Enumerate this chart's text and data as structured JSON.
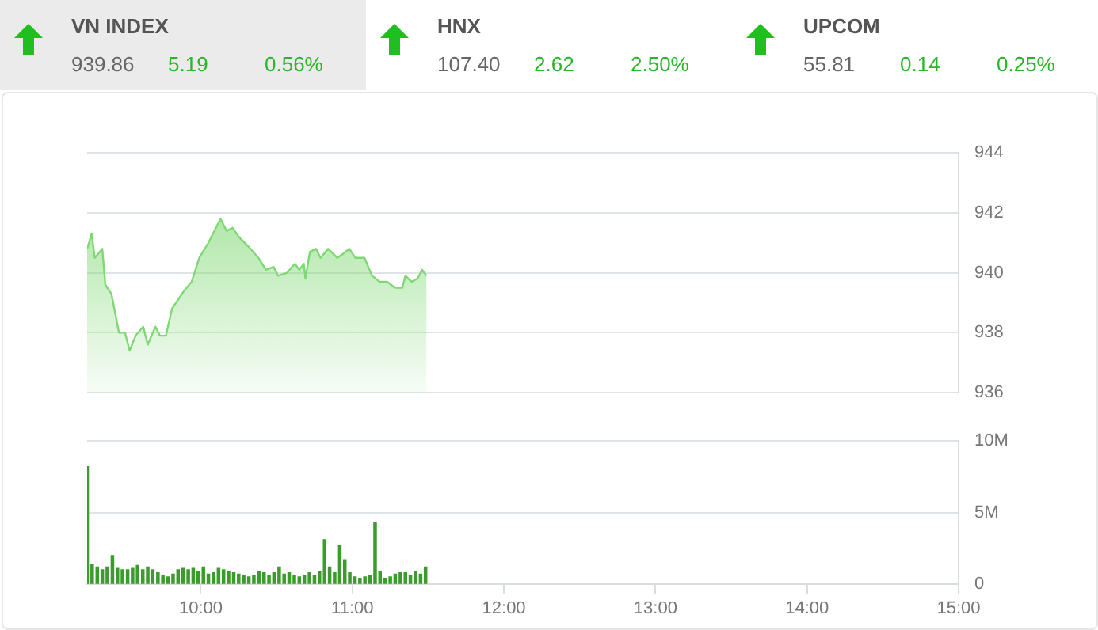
{
  "chart_data": [
    {
      "type": "other",
      "annotations": [
        "VN INDEX",
        "939.86",
        "5.19",
        "0.56%",
        "HNX",
        "107.40",
        "2.62",
        "2.50%",
        "UPCOM",
        "55.81",
        "0.14",
        "0.25%"
      ]
    },
    {
      "type": "area",
      "color": "#7fd873",
      "xlim": [
        9.25,
        15
      ],
      "ylim": [
        936,
        944
      ],
      "yticks": [
        936,
        938,
        940,
        942,
        944
      ],
      "grid": "y",
      "tick_labels": "y",
      "x": [
        9.25,
        9.28,
        9.3,
        9.35,
        9.37,
        9.41,
        9.46,
        9.5,
        9.53,
        9.57,
        9.62,
        9.65,
        9.7,
        9.73,
        9.77,
        9.81,
        9.89,
        9.94,
        9.99,
        10.05,
        10.1,
        10.13,
        10.17,
        10.21,
        10.25,
        10.31,
        10.38,
        10.43,
        10.48,
        10.51,
        10.57,
        10.62,
        10.65,
        10.68,
        10.69,
        10.72,
        10.76,
        10.79,
        10.84,
        10.9,
        10.93,
        10.98,
        11.02,
        11.08,
        11.13,
        11.18,
        11.23,
        11.28,
        11.33,
        11.35,
        11.39,
        11.43,
        11.46,
        11.49
      ],
      "values": [
        940.8,
        941.3,
        940.5,
        940.8,
        939.6,
        939.3,
        938.0,
        938.0,
        937.4,
        937.9,
        938.2,
        937.6,
        938.2,
        937.9,
        937.9,
        938.8,
        939.4,
        939.7,
        940.5,
        941.0,
        941.5,
        941.8,
        941.4,
        941.5,
        941.2,
        940.9,
        940.5,
        940.1,
        940.2,
        939.9,
        940.0,
        940.3,
        940.1,
        940.3,
        939.8,
        940.7,
        940.8,
        940.5,
        940.8,
        940.5,
        940.6,
        940.8,
        940.5,
        940.5,
        939.9,
        939.7,
        939.7,
        939.5,
        939.5,
        939.9,
        939.7,
        939.8,
        940.1,
        939.9
      ]
    },
    {
      "type": "bar",
      "color": "#3b9b2c",
      "xlim": [
        9.25,
        15
      ],
      "ylim": [
        0,
        10
      ],
      "yticks": [
        0,
        {
          "value": 5,
          "label": "5M"
        },
        {
          "value": 10,
          "label": "10M"
        }
      ],
      "grid": "y",
      "xticks": [
        {
          "value": 10,
          "label": "10:00"
        },
        {
          "value": 11,
          "label": "11:00"
        },
        {
          "value": 12,
          "label": "12:00"
        },
        {
          "value": 13,
          "label": "13:00"
        },
        {
          "value": 14,
          "label": "14:00"
        },
        {
          "value": 15,
          "label": "15:00"
        }
      ],
      "x": [
        9.25,
        9.283,
        9.317,
        9.35,
        9.383,
        9.417,
        9.45,
        9.483,
        9.517,
        9.55,
        9.583,
        9.617,
        9.65,
        9.683,
        9.717,
        9.75,
        9.783,
        9.817,
        9.85,
        9.883,
        9.917,
        9.95,
        9.983,
        10.017,
        10.05,
        10.083,
        10.117,
        10.15,
        10.183,
        10.217,
        10.25,
        10.283,
        10.317,
        10.35,
        10.383,
        10.417,
        10.45,
        10.483,
        10.517,
        10.55,
        10.583,
        10.617,
        10.65,
        10.683,
        10.717,
        10.75,
        10.783,
        10.817,
        10.85,
        10.883,
        10.917,
        10.95,
        10.983,
        11.017,
        11.05,
        11.083,
        11.117,
        11.15,
        11.183,
        11.217,
        11.25,
        11.283,
        11.317,
        11.35,
        11.383,
        11.417,
        11.45,
        11.483
      ],
      "values": [
        8.2,
        1.4,
        1.2,
        1.0,
        1.2,
        2.0,
        1.1,
        1.0,
        1.0,
        1.1,
        1.3,
        1.0,
        1.2,
        1.0,
        0.8,
        0.6,
        0.5,
        0.7,
        1.0,
        1.1,
        1.0,
        1.1,
        0.9,
        1.2,
        0.7,
        0.8,
        1.1,
        1.0,
        0.9,
        0.8,
        0.7,
        0.6,
        0.5,
        0.6,
        0.9,
        0.8,
        0.6,
        0.8,
        1.2,
        0.7,
        0.8,
        0.6,
        0.5,
        0.6,
        0.8,
        0.6,
        0.9,
        3.1,
        1.2,
        0.8,
        2.7,
        1.7,
        0.8,
        0.5,
        0.4,
        0.5,
        0.6,
        4.3,
        0.9,
        0.4,
        0.5,
        0.7,
        0.8,
        0.8,
        0.6,
        0.9,
        0.7,
        1.2
      ]
    }
  ]
}
